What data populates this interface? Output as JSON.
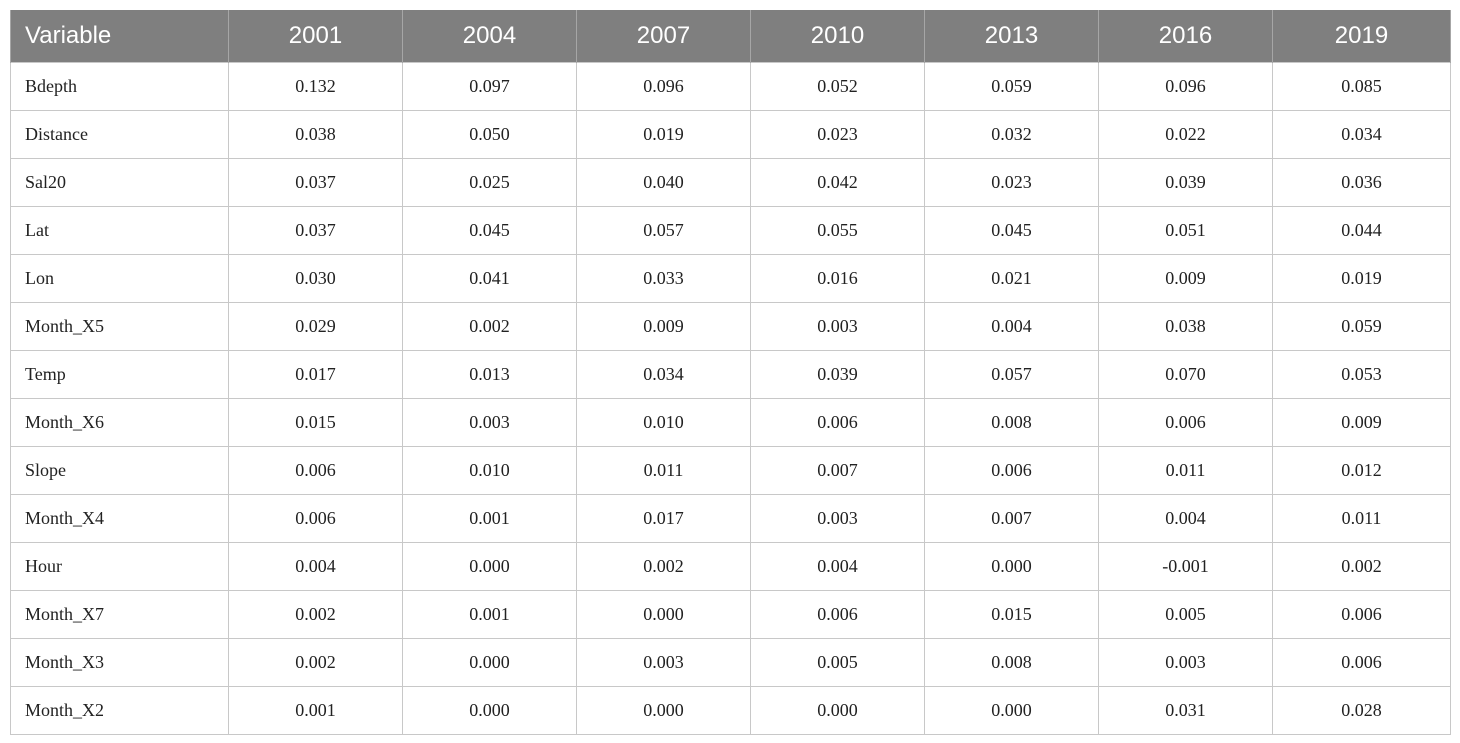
{
  "table": {
    "headers": [
      "Variable",
      "2001",
      "2004",
      "2007",
      "2010",
      "2013",
      "2016",
      "2019"
    ],
    "rows": [
      [
        "Bdepth",
        "0.132",
        "0.097",
        "0.096",
        "0.052",
        "0.059",
        "0.096",
        "0.085"
      ],
      [
        "Distance",
        "0.038",
        "0.050",
        "0.019",
        "0.023",
        "0.032",
        "0.022",
        "0.034"
      ],
      [
        "Sal20",
        "0.037",
        "0.025",
        "0.040",
        "0.042",
        "0.023",
        "0.039",
        "0.036"
      ],
      [
        "Lat",
        "0.037",
        "0.045",
        "0.057",
        "0.055",
        "0.045",
        "0.051",
        "0.044"
      ],
      [
        "Lon",
        "0.030",
        "0.041",
        "0.033",
        "0.016",
        "0.021",
        "0.009",
        "0.019"
      ],
      [
        "Month_X5",
        "0.029",
        "0.002",
        "0.009",
        "0.003",
        "0.004",
        "0.038",
        "0.059"
      ],
      [
        "Temp",
        "0.017",
        "0.013",
        "0.034",
        "0.039",
        "0.057",
        "0.070",
        "0.053"
      ],
      [
        "Month_X6",
        "0.015",
        "0.003",
        "0.010",
        "0.006",
        "0.008",
        "0.006",
        "0.009"
      ],
      [
        "Slope",
        "0.006",
        "0.010",
        "0.011",
        "0.007",
        "0.006",
        "0.011",
        "0.012"
      ],
      [
        "Month_X4",
        "0.006",
        "0.001",
        "0.017",
        "0.003",
        "0.007",
        "0.004",
        "0.011"
      ],
      [
        "Hour",
        "0.004",
        "0.000",
        "0.002",
        "0.004",
        "0.000",
        "-0.001",
        "0.002"
      ],
      [
        "Month_X7",
        "0.002",
        "0.001",
        "0.000",
        "0.006",
        "0.015",
        "0.005",
        "0.006"
      ],
      [
        "Month_X3",
        "0.002",
        "0.000",
        "0.003",
        "0.005",
        "0.008",
        "0.003",
        "0.006"
      ],
      [
        "Month_X2",
        "0.001",
        "0.000",
        "0.000",
        "0.000",
        "0.000",
        "0.031",
        "0.028"
      ]
    ]
  },
  "colors": {
    "header_bg": "#7f7f7f",
    "header_text": "#ffffff",
    "grid": "#c8c8c8"
  }
}
